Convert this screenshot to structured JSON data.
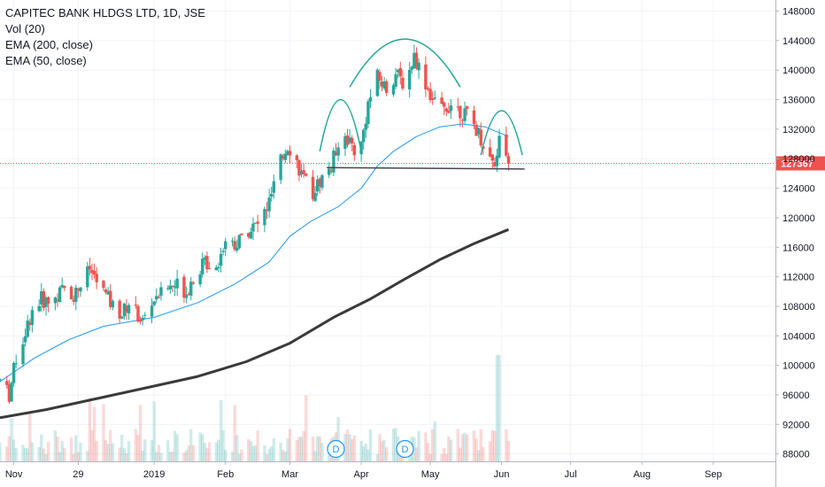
{
  "legend": {
    "symbol_line": "CAPITEC BANK HLDGS LTD, 1D, JSE",
    "volume_label": "Vol (20)",
    "ema200_label": "EMA (200, close)",
    "ema50_label": "EMA (50, close)"
  },
  "colors": {
    "up": "#26a69a",
    "down": "#ef5350",
    "ema50": "#2196f3",
    "ema200": "#3a3a3a",
    "pattern": "#26a69a",
    "neckline": "#434651",
    "last_price": "#ef5350",
    "marker": "#2196f3"
  },
  "chart_data": {
    "type": "candlestick",
    "title": "CAPITEC BANK HLDGS LTD, 1D, JSE",
    "y_axis": {
      "ticks": [
        148000,
        144000,
        140000,
        136000,
        132000,
        128000,
        124000,
        120000,
        116000,
        112000,
        108000,
        104000,
        100000,
        96000,
        92000,
        88000
      ],
      "tick_labels": [
        "148000",
        "144000",
        "140000",
        "136000",
        "132000",
        "128000",
        "124000",
        "120000",
        "116000",
        "112000",
        "108000",
        "104000",
        "100000",
        "96000",
        "92000",
        "88000"
      ],
      "range": [
        87000,
        149500
      ]
    },
    "x_axis": {
      "labels": [
        "Nov",
        "29",
        "2019",
        "Feb",
        "Mar",
        "Apr",
        "May",
        "Jun",
        "Jul",
        "Aug",
        "Sep"
      ],
      "range": [
        "2018-10-26",
        "2019-09-28"
      ]
    },
    "last_price": 127367,
    "last_price_label": "127367",
    "price_series": [
      [
        "2018-10-26",
        98000
      ],
      [
        "2018-10-30",
        96000
      ],
      [
        "2018-11-02",
        101000
      ],
      [
        "2018-11-06",
        104500
      ],
      [
        "2018-11-09",
        107500
      ],
      [
        "2018-11-13",
        109000
      ],
      [
        "2018-11-16",
        108500
      ],
      [
        "2018-11-20",
        109500
      ],
      [
        "2018-11-23",
        110500
      ],
      [
        "2018-11-27",
        109500
      ],
      [
        "2018-11-30",
        111000
      ],
      [
        "2018-12-04",
        113000
      ],
      [
        "2018-12-07",
        111500
      ],
      [
        "2018-12-11",
        109500
      ],
      [
        "2018-12-14",
        108000
      ],
      [
        "2018-12-18",
        107000
      ],
      [
        "2018-12-21",
        108500
      ],
      [
        "2018-12-27",
        106000
      ],
      [
        "2019-01-02",
        109500
      ],
      [
        "2019-01-07",
        110500
      ],
      [
        "2019-01-11",
        111000
      ],
      [
        "2019-01-15",
        110000
      ],
      [
        "2019-01-18",
        112000
      ],
      [
        "2019-01-23",
        114000
      ],
      [
        "2019-01-28",
        113500
      ],
      [
        "2019-02-01",
        117000
      ],
      [
        "2019-02-06",
        116500
      ],
      [
        "2019-02-11",
        118500
      ],
      [
        "2019-02-15",
        119000
      ],
      [
        "2019-02-20",
        122000
      ],
      [
        "2019-02-25",
        127500
      ],
      [
        "2019-02-28",
        130000
      ],
      [
        "2019-03-04",
        127500
      ],
      [
        "2019-03-07",
        125000
      ],
      [
        "2019-03-11",
        123500
      ],
      [
        "2019-03-15",
        125500
      ],
      [
        "2019-03-19",
        127000
      ],
      [
        "2019-03-23",
        131500
      ],
      [
        "2019-03-27",
        130500
      ],
      [
        "2019-03-31",
        128000
      ],
      [
        "2019-04-04",
        135500
      ],
      [
        "2019-04-08",
        139000
      ],
      [
        "2019-04-12",
        137500
      ],
      [
        "2019-04-16",
        139500
      ],
      [
        "2019-04-20",
        138000
      ],
      [
        "2019-04-24",
        142000
      ],
      [
        "2019-04-28",
        139000
      ],
      [
        "2019-05-02",
        136000
      ],
      [
        "2019-05-06",
        134500
      ],
      [
        "2019-05-10",
        135500
      ],
      [
        "2019-05-14",
        134500
      ],
      [
        "2019-05-18",
        133500
      ],
      [
        "2019-05-22",
        131500
      ],
      [
        "2019-05-26",
        128500
      ],
      [
        "2019-05-29",
        127500
      ],
      [
        "2019-06-01",
        132000
      ],
      [
        "2019-06-04",
        127367
      ]
    ],
    "series": [
      {
        "name": "EMA (50, close)",
        "points": [
          [
            "2018-10-26",
            97800
          ],
          [
            "2018-11-10",
            101000
          ],
          [
            "2018-11-25",
            103500
          ],
          [
            "2018-12-10",
            105300
          ],
          [
            "2019-01-01",
            106500
          ],
          [
            "2019-01-20",
            108500
          ],
          [
            "2019-02-05",
            111000
          ],
          [
            "2019-02-20",
            114000
          ],
          [
            "2019-03-01",
            117500
          ],
          [
            "2019-03-10",
            119500
          ],
          [
            "2019-03-22",
            121500
          ],
          [
            "2019-04-01",
            124000
          ],
          [
            "2019-04-08",
            127000
          ],
          [
            "2019-04-15",
            129000
          ],
          [
            "2019-04-25",
            131000
          ],
          [
            "2019-05-05",
            132300
          ],
          [
            "2019-05-15",
            132700
          ],
          [
            "2019-05-25",
            132300
          ],
          [
            "2019-06-04",
            131000
          ]
        ]
      },
      {
        "name": "EMA (200, close)",
        "points": [
          [
            "2018-10-26",
            92900
          ],
          [
            "2018-11-15",
            94000
          ],
          [
            "2018-12-10",
            95700
          ],
          [
            "2019-01-01",
            97200
          ],
          [
            "2019-01-20",
            98500
          ],
          [
            "2019-02-10",
            100500
          ],
          [
            "2019-03-01",
            103000
          ],
          [
            "2019-03-20",
            106500
          ],
          [
            "2019-04-05",
            109000
          ],
          [
            "2019-04-20",
            111700
          ],
          [
            "2019-05-05",
            114300
          ],
          [
            "2019-05-20",
            116500
          ],
          [
            "2019-06-04",
            118400
          ]
        ]
      }
    ],
    "volume": {
      "series_name": "Vol (20)",
      "spike_date": "2019-05-31"
    },
    "drawings": {
      "neckline": {
        "from": [
          "2019-03-17",
          126800
        ],
        "to": [
          "2019-06-11",
          126600
        ]
      },
      "left_shoulder_peak": [
        "2019-03-23",
        136000
      ],
      "head_peak": [
        "2019-04-20",
        144200
      ],
      "right_shoulder_peak": [
        "2019-06-01",
        134500
      ]
    },
    "dividend_markers": [
      {
        "date": "2019-03-21",
        "label": "D"
      },
      {
        "date": "2019-04-20",
        "label": "D"
      }
    ],
    "grid": true
  }
}
